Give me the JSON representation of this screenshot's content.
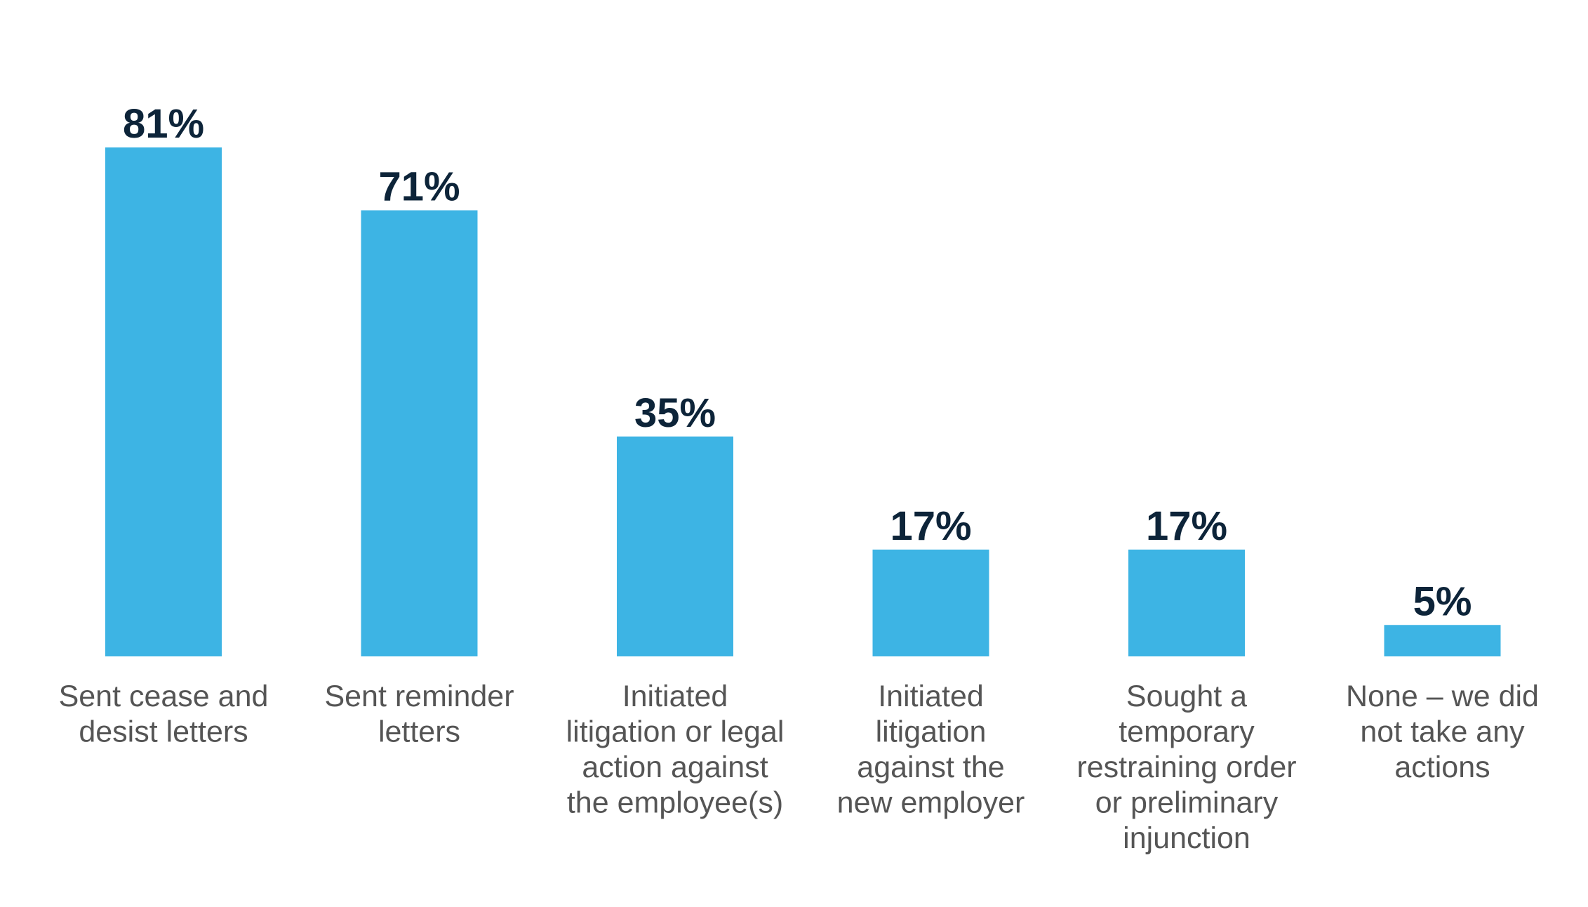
{
  "colors": {
    "bar": "#3db4e4",
    "value_text": "#0d2439",
    "label_text": "#555555"
  },
  "chart_data": {
    "type": "bar",
    "categories": [
      [
        "Sent cease and",
        "desist letters"
      ],
      [
        "Sent reminder",
        "letters"
      ],
      [
        "Initiated",
        "litigation or legal",
        "action against",
        "the employee(s)"
      ],
      [
        "Initiated",
        "litigation",
        "against the",
        "new employer"
      ],
      [
        "Sought a",
        "temporary",
        "restraining order",
        "or preliminary",
        "injunction"
      ],
      [
        "None – we did",
        "not take any",
        "actions"
      ]
    ],
    "values": [
      81,
      71,
      35,
      17,
      17,
      5
    ],
    "value_labels": [
      "81%",
      "71%",
      "35%",
      "17%",
      "17%",
      "5%"
    ],
    "title": "",
    "xlabel": "",
    "ylabel": "",
    "ylim": [
      0,
      100
    ],
    "grid": false
  }
}
